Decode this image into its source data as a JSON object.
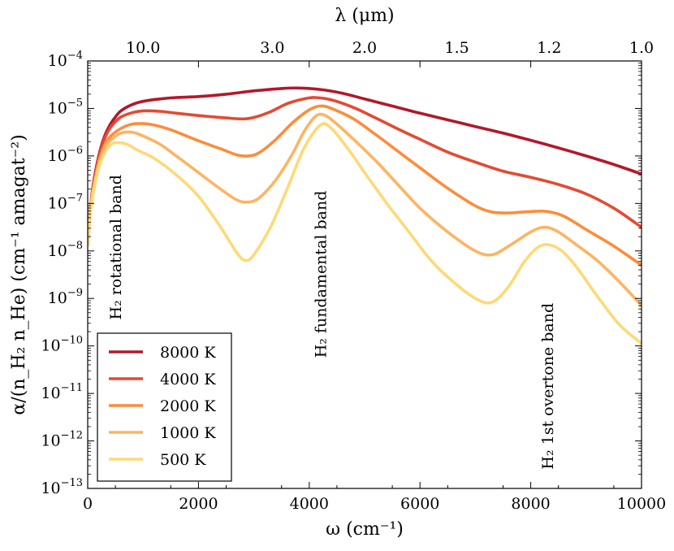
{
  "chart_data": {
    "type": "line",
    "title": "",
    "xlabel": "ω (cm⁻¹)",
    "ylabel": "α/(n_H₂ n_He) (cm⁻¹ amagat⁻²)",
    "top_xlabel": "λ (μm)",
    "xlim": [
      0,
      10000
    ],
    "ylim_log10": [
      -13,
      -4
    ],
    "x_ticks": [
      {
        "value": 0,
        "label": "0"
      },
      {
        "value": 2000,
        "label": "2000"
      },
      {
        "value": 4000,
        "label": "4000"
      },
      {
        "value": 6000,
        "label": "6000"
      },
      {
        "value": 8000,
        "label": "8000"
      },
      {
        "value": 10000,
        "label": "10000"
      }
    ],
    "y_ticks": [
      {
        "exp": -4,
        "base": "10",
        "sup": "−4"
      },
      {
        "exp": -5,
        "base": "10",
        "sup": "−5"
      },
      {
        "exp": -6,
        "base": "10",
        "sup": "−6"
      },
      {
        "exp": -7,
        "base": "10",
        "sup": "−7"
      },
      {
        "exp": -8,
        "base": "10",
        "sup": "−8"
      },
      {
        "exp": -9,
        "base": "10",
        "sup": "−9"
      },
      {
        "exp": -10,
        "base": "10",
        "sup": "−10"
      },
      {
        "exp": -11,
        "base": "10",
        "sup": "−11"
      },
      {
        "exp": -12,
        "base": "10",
        "sup": "−12"
      },
      {
        "exp": -13,
        "base": "10",
        "sup": "−13"
      }
    ],
    "top_ticks": [
      {
        "wavelength_um": 10.0,
        "label": "10.0"
      },
      {
        "wavelength_um": 3.0,
        "label": "3.0"
      },
      {
        "wavelength_um": 2.0,
        "label": "2.0"
      },
      {
        "wavelength_um": 1.5,
        "label": "1.5"
      },
      {
        "wavelength_um": 1.2,
        "label": "1.2"
      },
      {
        "wavelength_um": 1.0,
        "label": "1.0"
      }
    ],
    "annotations": [
      {
        "id": "rotational",
        "text": "H₂ rotational band",
        "x": 600,
        "y_log10": -9.45
      },
      {
        "id": "fundamental",
        "text": "H₂ fundamental band",
        "x": 4300,
        "y_log10": -10.25
      },
      {
        "id": "overtone",
        "text": "H₂ 1st overtone band",
        "x": 8400,
        "y_log10": -12.6
      }
    ],
    "legend_position": "lower-left",
    "series": [
      {
        "name": "8000 K",
        "color": "#b2182b",
        "points": [
          [
            0,
            -7.9
          ],
          [
            50,
            -7.1
          ],
          [
            100,
            -6.6
          ],
          [
            200,
            -6.0
          ],
          [
            300,
            -5.6
          ],
          [
            400,
            -5.35
          ],
          [
            500,
            -5.18
          ],
          [
            600,
            -5.05
          ],
          [
            800,
            -4.92
          ],
          [
            1000,
            -4.85
          ],
          [
            1300,
            -4.8
          ],
          [
            1600,
            -4.77
          ],
          [
            2000,
            -4.75
          ],
          [
            2500,
            -4.7
          ],
          [
            3000,
            -4.63
          ],
          [
            3500,
            -4.58
          ],
          [
            3800,
            -4.57
          ],
          [
            4200,
            -4.6
          ],
          [
            4600,
            -4.68
          ],
          [
            5000,
            -4.8
          ],
          [
            5500,
            -4.95
          ],
          [
            6000,
            -5.1
          ],
          [
            6500,
            -5.24
          ],
          [
            7000,
            -5.38
          ],
          [
            7500,
            -5.52
          ],
          [
            8000,
            -5.67
          ],
          [
            8500,
            -5.83
          ],
          [
            9000,
            -6.0
          ],
          [
            9500,
            -6.18
          ],
          [
            10000,
            -6.38
          ]
        ]
      },
      {
        "name": "4000 K",
        "color": "#e34a33",
        "points": [
          [
            0,
            -7.9
          ],
          [
            50,
            -7.1
          ],
          [
            100,
            -6.65
          ],
          [
            200,
            -6.05
          ],
          [
            300,
            -5.65
          ],
          [
            400,
            -5.42
          ],
          [
            500,
            -5.28
          ],
          [
            600,
            -5.18
          ],
          [
            800,
            -5.09
          ],
          [
            1000,
            -5.05
          ],
          [
            1300,
            -5.06
          ],
          [
            1600,
            -5.1
          ],
          [
            2000,
            -5.15
          ],
          [
            2500,
            -5.2
          ],
          [
            2800,
            -5.22
          ],
          [
            3000,
            -5.19
          ],
          [
            3300,
            -5.07
          ],
          [
            3600,
            -4.9
          ],
          [
            3900,
            -4.8
          ],
          [
            4100,
            -4.77
          ],
          [
            4400,
            -4.82
          ],
          [
            4800,
            -4.98
          ],
          [
            5200,
            -5.2
          ],
          [
            5600,
            -5.43
          ],
          [
            6000,
            -5.65
          ],
          [
            6500,
            -5.92
          ],
          [
            7000,
            -6.13
          ],
          [
            7500,
            -6.32
          ],
          [
            8000,
            -6.45
          ],
          [
            8500,
            -6.6
          ],
          [
            9000,
            -6.8
          ],
          [
            9500,
            -7.1
          ],
          [
            10000,
            -7.5
          ]
        ]
      },
      {
        "name": "2000 K",
        "color": "#fc8d3b",
        "points": [
          [
            0,
            -7.9
          ],
          [
            50,
            -7.15
          ],
          [
            100,
            -6.7
          ],
          [
            200,
            -6.12
          ],
          [
            300,
            -5.78
          ],
          [
            400,
            -5.6
          ],
          [
            600,
            -5.42
          ],
          [
            800,
            -5.33
          ],
          [
            1000,
            -5.32
          ],
          [
            1200,
            -5.35
          ],
          [
            1500,
            -5.45
          ],
          [
            2000,
            -5.68
          ],
          [
            2400,
            -5.85
          ],
          [
            2700,
            -5.98
          ],
          [
            2900,
            -6.0
          ],
          [
            3100,
            -5.93
          ],
          [
            3400,
            -5.65
          ],
          [
            3700,
            -5.3
          ],
          [
            4000,
            -5.03
          ],
          [
            4200,
            -4.95
          ],
          [
            4400,
            -5.0
          ],
          [
            4800,
            -5.22
          ],
          [
            5200,
            -5.55
          ],
          [
            5600,
            -5.9
          ],
          [
            6000,
            -6.25
          ],
          [
            6500,
            -6.68
          ],
          [
            7000,
            -7.05
          ],
          [
            7300,
            -7.18
          ],
          [
            7600,
            -7.2
          ],
          [
            8000,
            -7.17
          ],
          [
            8300,
            -7.17
          ],
          [
            8600,
            -7.27
          ],
          [
            9000,
            -7.55
          ],
          [
            9500,
            -7.9
          ],
          [
            10000,
            -8.3
          ]
        ]
      },
      {
        "name": "1000 K",
        "color": "#fdb462",
        "points": [
          [
            0,
            -7.9
          ],
          [
            50,
            -7.15
          ],
          [
            100,
            -6.7
          ],
          [
            200,
            -6.18
          ],
          [
            300,
            -5.85
          ],
          [
            400,
            -5.68
          ],
          [
            600,
            -5.52
          ],
          [
            800,
            -5.5
          ],
          [
            1000,
            -5.58
          ],
          [
            1300,
            -5.75
          ],
          [
            1600,
            -6.0
          ],
          [
            2000,
            -6.35
          ],
          [
            2400,
            -6.7
          ],
          [
            2700,
            -6.93
          ],
          [
            2900,
            -6.97
          ],
          [
            3100,
            -6.88
          ],
          [
            3400,
            -6.5
          ],
          [
            3700,
            -5.95
          ],
          [
            3900,
            -5.5
          ],
          [
            4100,
            -5.18
          ],
          [
            4250,
            -5.13
          ],
          [
            4450,
            -5.28
          ],
          [
            4800,
            -5.65
          ],
          [
            5200,
            -6.1
          ],
          [
            5600,
            -6.6
          ],
          [
            6000,
            -7.1
          ],
          [
            6500,
            -7.6
          ],
          [
            7000,
            -8.0
          ],
          [
            7300,
            -8.08
          ],
          [
            7600,
            -7.9
          ],
          [
            8000,
            -7.6
          ],
          [
            8250,
            -7.5
          ],
          [
            8500,
            -7.6
          ],
          [
            8800,
            -7.85
          ],
          [
            9200,
            -8.2
          ],
          [
            9600,
            -8.65
          ],
          [
            10000,
            -9.15
          ]
        ]
      },
      {
        "name": "500 K",
        "color": "#fed976",
        "points": [
          [
            0,
            -7.9
          ],
          [
            50,
            -7.2
          ],
          [
            100,
            -6.8
          ],
          [
            200,
            -6.25
          ],
          [
            300,
            -5.95
          ],
          [
            400,
            -5.78
          ],
          [
            500,
            -5.72
          ],
          [
            700,
            -5.75
          ],
          [
            900,
            -5.88
          ],
          [
            1200,
            -6.05
          ],
          [
            1600,
            -6.4
          ],
          [
            2000,
            -6.85
          ],
          [
            2400,
            -7.5
          ],
          [
            2700,
            -8.05
          ],
          [
            2850,
            -8.2
          ],
          [
            3000,
            -8.08
          ],
          [
            3300,
            -7.5
          ],
          [
            3600,
            -6.7
          ],
          [
            3900,
            -5.85
          ],
          [
            4200,
            -5.35
          ],
          [
            4400,
            -5.42
          ],
          [
            4700,
            -5.85
          ],
          [
            5000,
            -6.35
          ],
          [
            5400,
            -7.0
          ],
          [
            5800,
            -7.6
          ],
          [
            6200,
            -8.2
          ],
          [
            6600,
            -8.65
          ],
          [
            7000,
            -9.0
          ],
          [
            7300,
            -9.08
          ],
          [
            7600,
            -8.75
          ],
          [
            7900,
            -8.2
          ],
          [
            8200,
            -7.88
          ],
          [
            8500,
            -7.95
          ],
          [
            8800,
            -8.3
          ],
          [
            9200,
            -8.95
          ],
          [
            9600,
            -9.55
          ],
          [
            10000,
            -9.95
          ]
        ]
      }
    ]
  }
}
